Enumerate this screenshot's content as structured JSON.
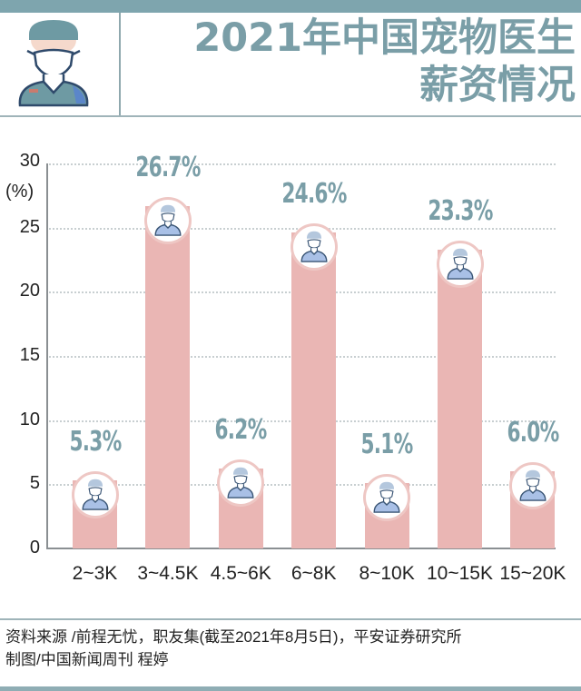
{
  "header": {
    "title_line1": "2021年中国宠物医生",
    "title_line2": "薪资情况",
    "icon": "vet-doctor-avatar-icon",
    "accent_color": "#7a9ea7"
  },
  "chart_data": {
    "type": "bar",
    "title": "2021年中国宠物医生薪资情况",
    "xlabel": "",
    "ylabel": "(%)",
    "ylim": [
      0,
      30
    ],
    "yticks": [
      "0",
      "5",
      "10",
      "15",
      "20",
      "25",
      "30"
    ],
    "grid": true,
    "categories": [
      "2~3K",
      "3~4.5K",
      "4.5~6K",
      "6~8K",
      "8~10K",
      "10~15K",
      "15~20K"
    ],
    "values": [
      5.3,
      26.7,
      6.2,
      24.6,
      5.1,
      23.3,
      6.0
    ],
    "labels": [
      "5.3%",
      "26.7%",
      "6.2%",
      "24.6%",
      "5.1%",
      "23.3%",
      "6.0%"
    ],
    "bar_color": "#eab6b4",
    "label_color": "#7a9ea7",
    "marker_icon": "vet-doctor-avatar-icon"
  },
  "footer": {
    "source_line": "资料来源 /前程无忧，职友集(截至2021年8月5日)，平安证券研究所",
    "credit_line": "制图/中国新闻周刊 程婷"
  }
}
